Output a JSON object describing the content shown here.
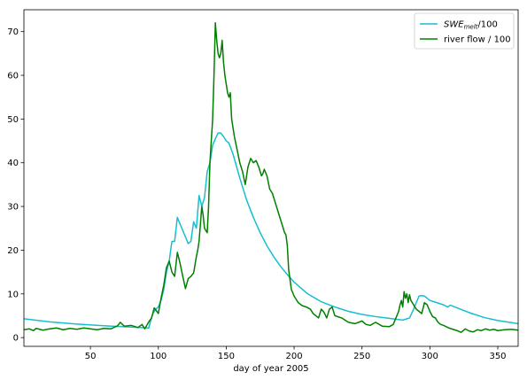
{
  "chart_data": {
    "type": "line",
    "title": "",
    "xlabel": "day of year 2005",
    "ylabel": "",
    "xlim": [
      1,
      365
    ],
    "ylim": [
      -2,
      75
    ],
    "xticks": [
      50,
      100,
      150,
      200,
      250,
      300,
      350
    ],
    "yticks": [
      0,
      10,
      20,
      30,
      40,
      50,
      60,
      70
    ],
    "grid": false,
    "legend_position": "top-right",
    "series": [
      {
        "name": "SWE_melt/100",
        "legend_main": "SWE",
        "legend_sub": "melt",
        "legend_suffix": "/100",
        "color": "#17becf",
        "x": [
          1,
          20,
          40,
          60,
          80,
          93,
          94,
          96,
          98,
          100,
          102,
          104,
          106,
          108,
          110,
          112,
          114,
          116,
          118,
          120,
          122,
          124,
          126,
          128,
          130,
          132,
          134,
          136,
          138,
          140,
          142,
          144,
          146,
          148,
          150,
          152,
          155,
          160,
          165,
          170,
          175,
          180,
          185,
          190,
          195,
          200,
          210,
          220,
          230,
          240,
          250,
          260,
          270,
          280,
          285,
          288,
          290,
          292,
          294,
          296,
          298,
          300,
          305,
          310,
          313,
          315,
          320,
          330,
          340,
          350,
          365
        ],
        "y": [
          4.3,
          3.6,
          3.1,
          2.7,
          2.4,
          2.2,
          3.5,
          5.5,
          6.5,
          7.0,
          8.5,
          11.0,
          15.0,
          17.5,
          22.0,
          22.0,
          27.5,
          26.0,
          24.5,
          23.0,
          21.5,
          22.0,
          26.5,
          25.0,
          32.5,
          30.0,
          32.0,
          38.0,
          40.0,
          44.0,
          45.5,
          46.8,
          46.8,
          46.0,
          45.0,
          44.5,
          42.0,
          36.5,
          31.5,
          27.5,
          24.0,
          21.0,
          18.5,
          16.3,
          14.4,
          12.7,
          10.0,
          8.2,
          7.0,
          6.0,
          5.3,
          4.8,
          4.4,
          4.0,
          4.5,
          6.5,
          8.0,
          9.5,
          9.6,
          9.5,
          9.0,
          8.5,
          8.0,
          7.5,
          7.0,
          7.4,
          6.8,
          5.6,
          4.6,
          3.9,
          3.2
        ]
      },
      {
        "name": "river flow / 100",
        "color": "#008000",
        "x": [
          1,
          5,
          8,
          10,
          15,
          20,
          25,
          30,
          35,
          40,
          45,
          50,
          55,
          60,
          65,
          70,
          72,
          75,
          80,
          85,
          88,
          90,
          93,
          95,
          97,
          100,
          102,
          104,
          106,
          108,
          110,
          112,
          114,
          116,
          118,
          120,
          122,
          124,
          126,
          128,
          129,
          130,
          132,
          133,
          134,
          136,
          137,
          138,
          140,
          141,
          142,
          143,
          144,
          145,
          146,
          147,
          148,
          149,
          150,
          151,
          152,
          153,
          154,
          156,
          158,
          160,
          162,
          164,
          166,
          168,
          170,
          172,
          174,
          175,
          176,
          177,
          178,
          180,
          182,
          184,
          186,
          188,
          190,
          191,
          192,
          193,
          194,
          195,
          196,
          198,
          200,
          203,
          206,
          209,
          212,
          214,
          216,
          218,
          220,
          222,
          224,
          226,
          228,
          230,
          235,
          240,
          245,
          250,
          253,
          256,
          260,
          265,
          270,
          273,
          275,
          277,
          278,
          279,
          280,
          281,
          282,
          283,
          284,
          285,
          286,
          288,
          290,
          292,
          294,
          296,
          298,
          300,
          302,
          304,
          306,
          308,
          310,
          312,
          314,
          316,
          318,
          320,
          323,
          326,
          329,
          332,
          335,
          338,
          341,
          344,
          347,
          350,
          355,
          360,
          365
        ],
        "y": [
          1.8,
          2.0,
          1.6,
          2.1,
          1.7,
          2.0,
          2.2,
          1.8,
          2.1,
          1.9,
          2.2,
          2.0,
          1.8,
          2.1,
          2.0,
          2.7,
          3.5,
          2.6,
          2.8,
          2.3,
          3.0,
          2.0,
          3.6,
          4.5,
          6.8,
          5.5,
          9.0,
          12.0,
          16.0,
          17.5,
          15.0,
          14.0,
          19.5,
          17.0,
          14.0,
          11.2,
          13.5,
          14.0,
          14.8,
          18.5,
          20.0,
          22.0,
          30.0,
          28.0,
          25.0,
          24.0,
          30.0,
          40.0,
          50.0,
          60.0,
          72.0,
          68.0,
          65.0,
          64.0,
          65.0,
          68.0,
          63.0,
          60.0,
          58.0,
          56.0,
          55.0,
          56.0,
          50.0,
          46.0,
          43.0,
          40.0,
          38.0,
          35.0,
          39.0,
          41.0,
          40.0,
          40.5,
          39.0,
          38.0,
          37.0,
          37.5,
          38.5,
          37.0,
          34.0,
          33.0,
          31.0,
          29.0,
          27.0,
          26.0,
          25.0,
          24.0,
          23.5,
          21.0,
          15.5,
          11.0,
          9.5,
          8.0,
          7.3,
          7.0,
          6.5,
          5.5,
          5.0,
          4.5,
          6.5,
          5.8,
          4.5,
          6.5,
          7.0,
          5.0,
          4.5,
          3.5,
          3.2,
          3.8,
          3.0,
          2.8,
          3.5,
          2.6,
          2.5,
          3.0,
          4.5,
          6.0,
          7.5,
          8.5,
          7.0,
          10.5,
          9.0,
          10.0,
          8.0,
          9.8,
          8.5,
          7.5,
          6.5,
          6.0,
          5.5,
          8.0,
          7.5,
          6.0,
          4.8,
          4.5,
          3.5,
          3.0,
          2.8,
          2.5,
          2.2,
          2.0,
          1.8,
          1.6,
          1.2,
          2.0,
          1.5,
          1.3,
          1.8,
          1.6,
          2.0,
          1.7,
          1.9,
          1.6,
          1.8,
          1.9,
          1.7
        ]
      }
    ]
  }
}
